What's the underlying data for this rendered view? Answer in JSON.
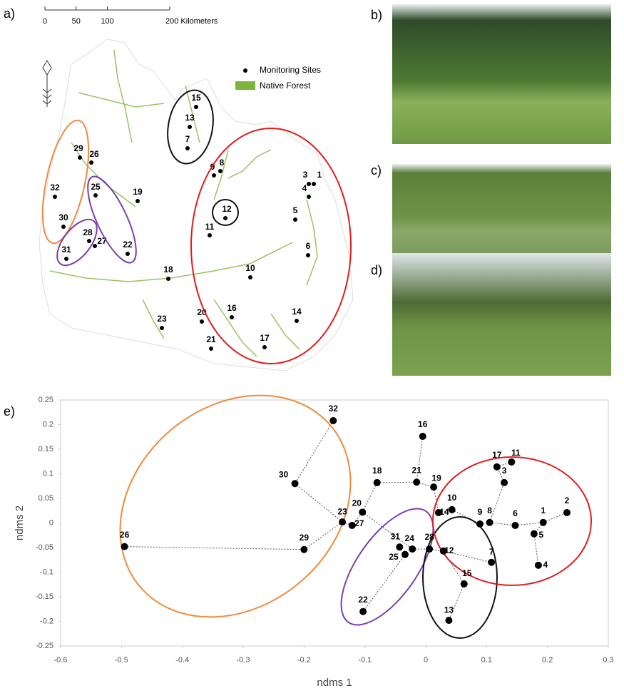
{
  "panels": [
    "a)",
    "b)",
    "c)",
    "d)",
    "e)"
  ],
  "map": {
    "scale_bar": {
      "lim": [
        0,
        200
      ],
      "ticks": [
        0,
        50,
        100,
        {
          "value": 200,
          "label": "200 Kilometers"
        }
      ]
    },
    "legend": [
      "Monitoring Sites",
      "Native Forest"
    ],
    "sites": [
      "1",
      "3",
      "4",
      "5",
      "6",
      "7",
      "8",
      "9",
      "10",
      "11",
      "12",
      "13",
      "14",
      "15",
      "16",
      "17",
      "18",
      "19",
      "20",
      "21",
      "22",
      "23",
      "25",
      "26",
      "27",
      "28",
      "29",
      "30",
      "31",
      "32"
    ]
  },
  "chart_data": {
    "type": "scatter",
    "x": [
      0.193,
      0.232,
      0.129,
      0.185,
      0.178,
      0.147,
      0.108,
      0.105,
      0.089,
      0.043,
      0.141,
      0.029,
      0.038,
      0.021,
      0.063,
      -0.005,
      0.117,
      -0.08,
      0.013,
      -0.104,
      -0.015,
      -0.103,
      -0.137,
      -0.022,
      -0.034,
      -0.495,
      -0.121,
      0.006,
      -0.2,
      -0.215,
      -0.043,
      -0.152
    ],
    "values": [
      0.001,
      0.021,
      0.082,
      -0.086,
      -0.022,
      -0.005,
      -0.08,
      0.001,
      -0.002,
      0.027,
      0.124,
      -0.057,
      -0.198,
      0.021,
      -0.124,
      0.176,
      0.114,
      0.082,
      0.073,
      0.022,
      0.083,
      -0.18,
      0.002,
      -0.053,
      -0.064,
      -0.048,
      -0.005,
      -0.053,
      -0.054,
      0.08,
      -0.049,
      0.208
    ],
    "labels": [
      "1",
      "2",
      "3",
      "4",
      "5",
      "6",
      "7",
      "8",
      "9",
      "10",
      "11",
      "12",
      "13",
      "14",
      "15",
      "16",
      "17",
      "18",
      "19",
      "20",
      "21",
      "22",
      "23",
      "24",
      "25",
      "26",
      "27",
      "28",
      "29",
      "30",
      "31",
      "32"
    ],
    "x_label": "ndms 1",
    "y_label": "ndms 2",
    "xlim": [
      -0.6,
      0.3
    ],
    "xticks": [
      -0.6,
      -0.5,
      -0.4,
      -0.3,
      -0.2,
      -0.1,
      0,
      0.1,
      0.2,
      0.3
    ],
    "ylim": [
      -0.25,
      0.25
    ],
    "yticks": [
      0.25,
      0.2,
      0.15,
      0.1,
      0.05,
      0,
      -0.05,
      -0.1,
      -0.15,
      -0.2,
      -0.25
    ],
    "color": "#000000",
    "grid": false
  }
}
